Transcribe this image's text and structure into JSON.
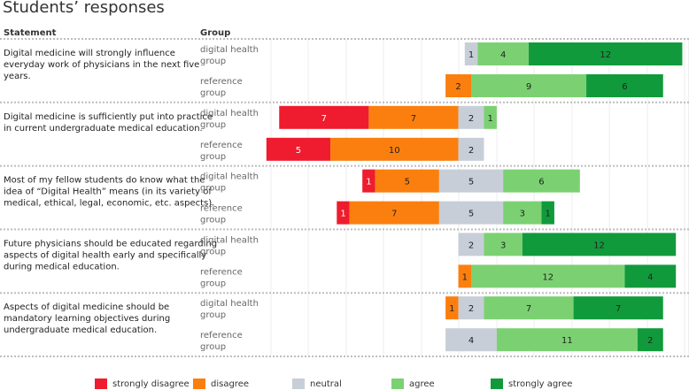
{
  "title": "Students’ responses",
  "headers": {
    "statement": "Statement",
    "group": "Group"
  },
  "colors": {
    "strongly_disagree": "#ee1c2e",
    "disagree": "#fb7f0e",
    "neutral": "#c7ced8",
    "agree": "#7bd172",
    "strongly_agree": "#119a3c"
  },
  "legend": [
    {
      "key": "strongly_disagree",
      "label": "strongly disagree"
    },
    {
      "key": "disagree",
      "label": "disagree"
    },
    {
      "key": "neutral",
      "label": "neutral"
    },
    {
      "key": "agree",
      "label": "agree"
    },
    {
      "key": "strongly_agree",
      "label": "strongly agree"
    }
  ],
  "chart_data": {
    "type": "bar",
    "subtype": "diverging-stacked-horizontal",
    "title": "Students’ responses",
    "categories_order": [
      "strongly disagree",
      "disagree",
      "neutral",
      "agree",
      "strongly agree"
    ],
    "statements": [
      {
        "lines": [
          "Digital medicine will strongly influence",
          "everyday work of physicians in the next five",
          "years."
        ],
        "groups": [
          {
            "lines": [
              "digital health",
              "group"
            ],
            "values": {
              "strongly_disagree": 0,
              "disagree": 0,
              "neutral": 1,
              "agree": 4,
              "strongly_agree": 12
            }
          },
          {
            "lines": [
              "reference",
              "group"
            ],
            "values": {
              "strongly_disagree": 0,
              "disagree": 2,
              "neutral": 0,
              "agree": 9,
              "strongly_agree": 6
            }
          }
        ]
      },
      {
        "lines": [
          "Digital medicine is sufficiently put into practice",
          "in current undergraduate medical education."
        ],
        "groups": [
          {
            "lines": [
              "digital health",
              "group"
            ],
            "values": {
              "strongly_disagree": 7,
              "disagree": 7,
              "neutral": 2,
              "agree": 1,
              "strongly_agree": 0
            }
          },
          {
            "lines": [
              "reference",
              "group"
            ],
            "values": {
              "strongly_disagree": 5,
              "disagree": 10,
              "neutral": 2,
              "agree": 0,
              "strongly_agree": 0
            }
          }
        ]
      },
      {
        "lines": [
          "Most of my fellow students do know what the",
          "idea of “Digital Health” means (in its variety of",
          "medical, ethical, legal, economic, etc. aspects)."
        ],
        "groups": [
          {
            "lines": [
              "digital health",
              "group"
            ],
            "values": {
              "strongly_disagree": 1,
              "disagree": 5,
              "neutral": 5,
              "agree": 6,
              "strongly_agree": 0
            }
          },
          {
            "lines": [
              "reference",
              "group"
            ],
            "values": {
              "strongly_disagree": 1,
              "disagree": 7,
              "neutral": 5,
              "agree": 3,
              "strongly_agree": 1
            }
          }
        ]
      },
      {
        "lines": [
          "Future physicians should be educated regarding",
          "aspects of digital health early and specifically",
          "during medical education."
        ],
        "groups": [
          {
            "lines": [
              "digital health",
              "group"
            ],
            "values": {
              "strongly_disagree": 0,
              "disagree": 0,
              "neutral": 2,
              "agree": 3,
              "strongly_agree": 12
            }
          },
          {
            "lines": [
              "reference",
              "group"
            ],
            "values": {
              "strongly_disagree": 0,
              "disagree": 1,
              "neutral": 0,
              "agree": 12,
              "strongly_agree": 4
            }
          }
        ]
      },
      {
        "lines": [
          "Aspects of digital medicine should be",
          "mandatory learning objectives during",
          "undergraduate medical education."
        ],
        "groups": [
          {
            "lines": [
              "digital health",
              "group"
            ],
            "values": {
              "strongly_disagree": 0,
              "disagree": 1,
              "neutral": 2,
              "agree": 7,
              "strongly_agree": 7
            }
          },
          {
            "lines": [
              "reference",
              "group"
            ],
            "values": {
              "strongly_disagree": 0,
              "disagree": 0,
              "neutral": 4,
              "agree": 11,
              "strongly_agree": 2
            }
          }
        ]
      }
    ]
  }
}
